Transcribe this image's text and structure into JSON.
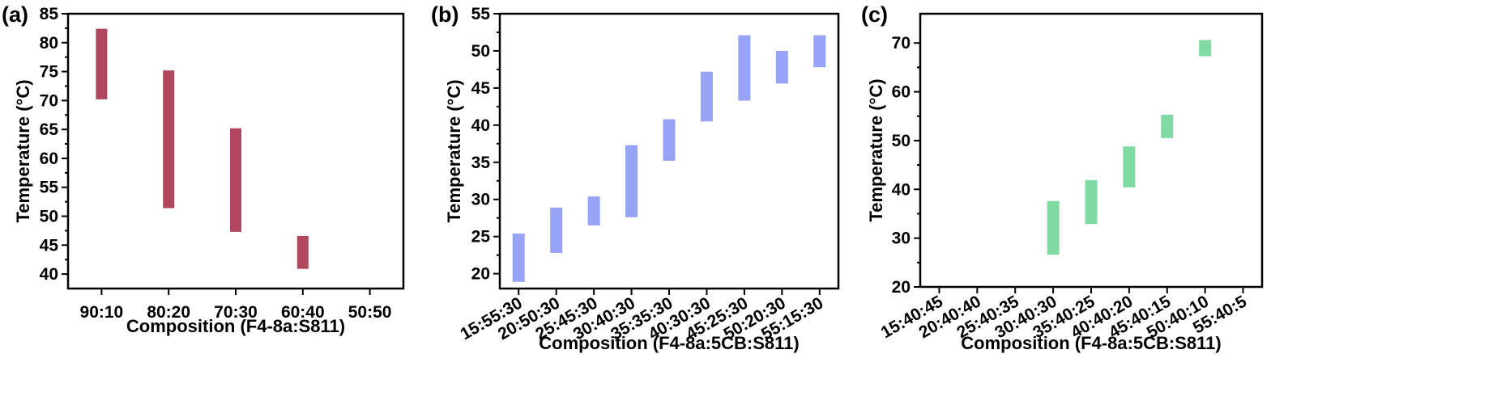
{
  "chart_data": [
    {
      "type": "bar",
      "panel_label": "(a)",
      "categories": [
        "90:10",
        "80:20",
        "70:30",
        "60:40",
        "50:50"
      ],
      "ranges": [
        [
          70.2,
          82.4
        ],
        [
          51.4,
          75.2
        ],
        [
          47.3,
          65.2
        ],
        [
          40.9,
          46.6
        ],
        null
      ],
      "color": "#b0475f",
      "xlabel": "Composition (F4-8a:S811)",
      "ylabel": "Temperature (°C)",
      "ylim": [
        37.5,
        85
      ],
      "yticks": [
        40,
        45,
        50,
        55,
        60,
        65,
        70,
        75,
        80,
        85
      ],
      "grid": false
    },
    {
      "type": "bar",
      "panel_label": "(b)",
      "categories": [
        "15:55:30",
        "20:50:30",
        "25:45:30",
        "30:40:30",
        "35:35:30",
        "40:30:30",
        "45:25:30",
        "50:20:30",
        "55:15:30"
      ],
      "ranges": [
        [
          18.9,
          25.4
        ],
        [
          22.8,
          28.9
        ],
        [
          26.5,
          30.4
        ],
        [
          27.6,
          37.3
        ],
        [
          35.2,
          40.8
        ],
        [
          40.5,
          47.2
        ],
        [
          43.3,
          52.1
        ],
        [
          45.6,
          50.0
        ],
        [
          47.8,
          52.1
        ]
      ],
      "color": "#97a3f7",
      "xlabel": "Composition (F4-8a:5CB:S811)",
      "ylabel": "Temperature (°C)",
      "ylim": [
        18,
        55
      ],
      "yticks": [
        20,
        25,
        30,
        35,
        40,
        45,
        50,
        55
      ],
      "grid": false
    },
    {
      "type": "bar",
      "panel_label": "(c)",
      "categories": [
        "15:40:45",
        "20:40:40",
        "25:40:35",
        "30:40:30",
        "35:40:25",
        "40:40:20",
        "45:40:15",
        "50:40:10",
        "55:40:5"
      ],
      "ranges": [
        null,
        null,
        null,
        [
          26.6,
          37.6
        ],
        [
          32.9,
          41.9
        ],
        [
          40.4,
          48.8
        ],
        [
          50.5,
          55.3
        ],
        [
          67.3,
          70.6
        ],
        null
      ],
      "color": "#7fdba1",
      "xlabel": "Composition (F4-8a:5CB:S811)",
      "ylabel": "Temperature (°C)",
      "ylim": [
        20,
        76
      ],
      "yticks": [
        20,
        30,
        40,
        50,
        60,
        70
      ],
      "grid": false
    }
  ]
}
